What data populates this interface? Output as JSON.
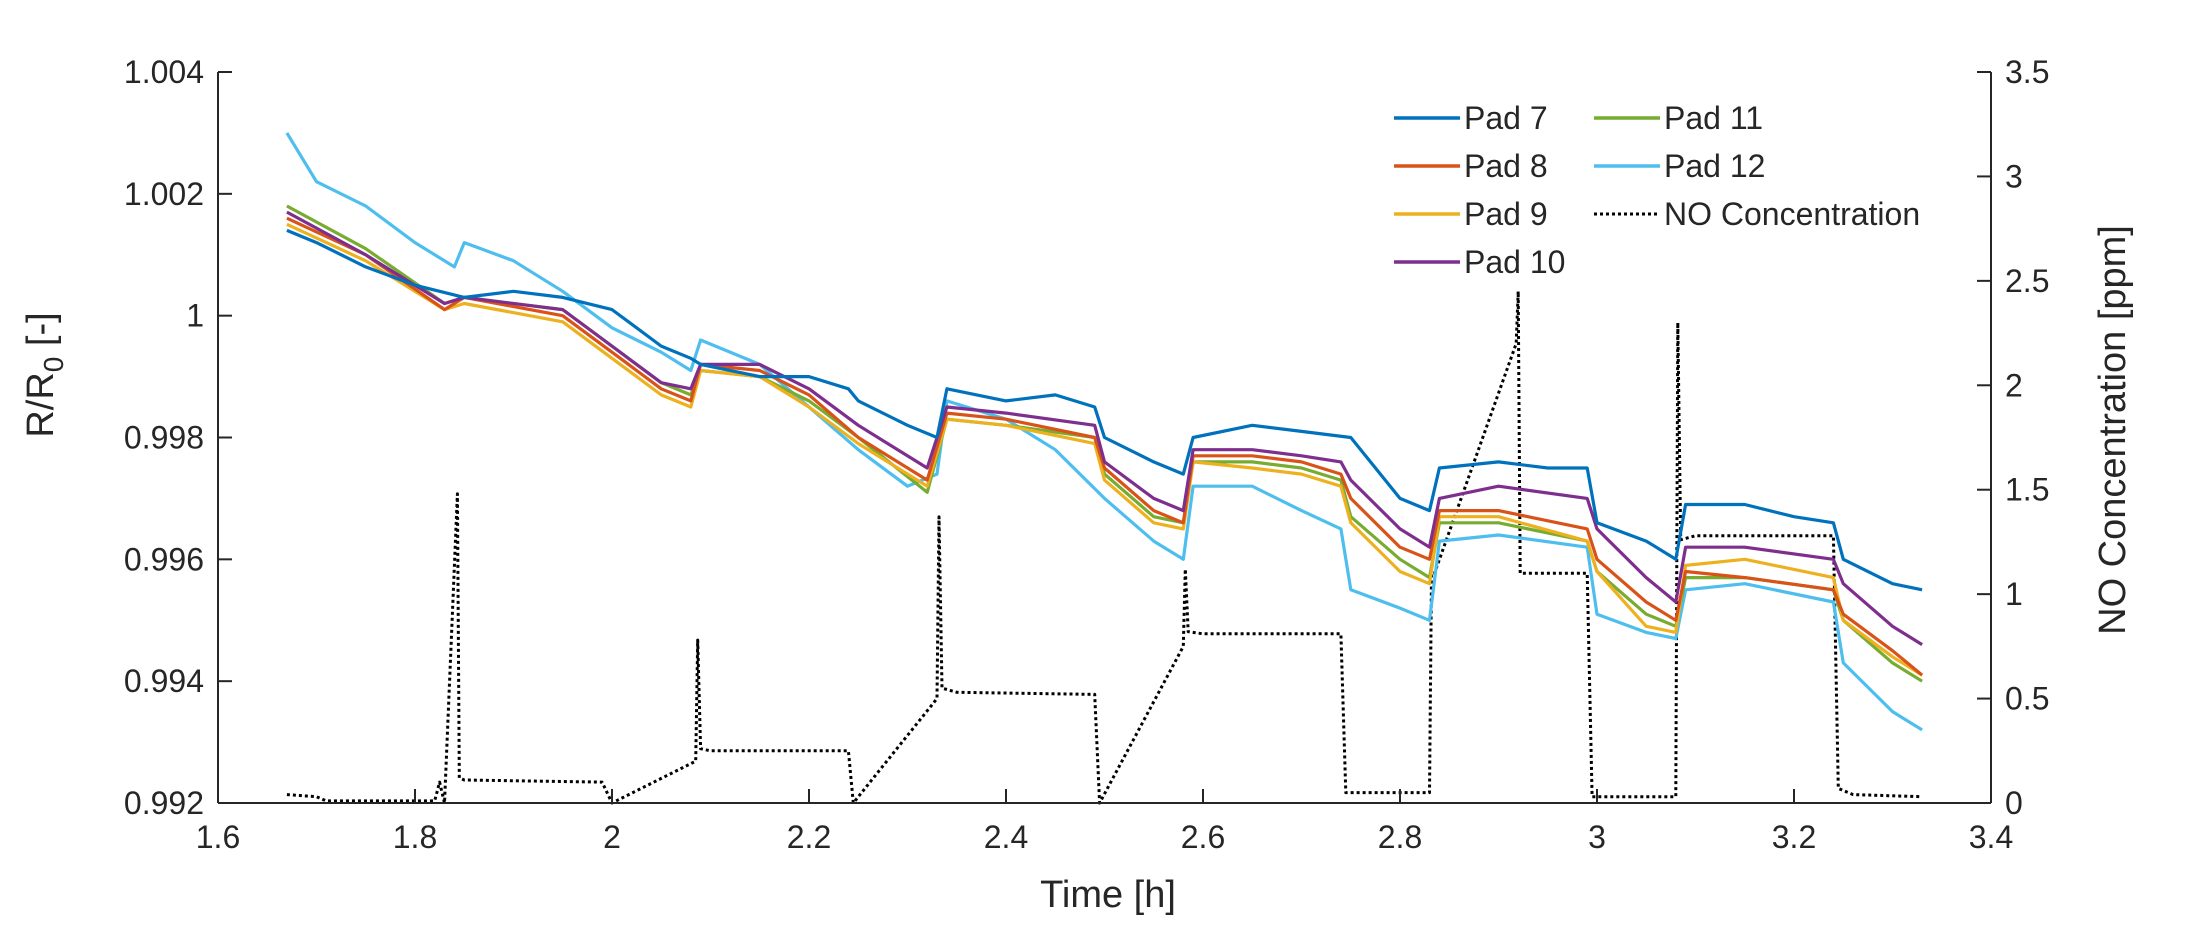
{
  "chart_data": {
    "type": "line",
    "xlabel": "Time [h]",
    "ylabel_left_main": "R/R",
    "ylabel_left_sub": "0",
    "ylabel_left_suffix": " [-]",
    "ylabel_right": "NO Concentration [ppm]",
    "xlim": [
      1.6,
      3.4
    ],
    "ylim_left": [
      0.992,
      1.004
    ],
    "ylim_right": [
      0,
      3.5
    ],
    "x_ticks": [
      "1.6",
      "1.8",
      "2",
      "2.2",
      "2.4",
      "2.6",
      "2.8",
      "3",
      "3.2",
      "3.4"
    ],
    "y_left_ticks": [
      "0.992",
      "0.994",
      "0.996",
      "0.998",
      "1",
      "1.002",
      "1.004"
    ],
    "y_right_ticks": [
      "0",
      "0.5",
      "1",
      "1.5",
      "2",
      "2.5",
      "3",
      "3.5"
    ],
    "grid": false,
    "legend_position": "top-right",
    "colors": {
      "Pad 7": "#0072BD",
      "Pad 8": "#D95319",
      "Pad 9": "#EDB120",
      "Pad 10": "#7E2F8E",
      "Pad 11": "#77AC30",
      "Pad 12": "#4DBEEE",
      "NO Concentration": "#000000"
    },
    "series": [
      {
        "name": "Pad 7",
        "axis": "left",
        "x": [
          1.67,
          1.7,
          1.75,
          1.8,
          1.85,
          1.9,
          1.95,
          2.0,
          2.05,
          2.08,
          2.09,
          2.15,
          2.2,
          2.24,
          2.25,
          2.3,
          2.33,
          2.34,
          2.4,
          2.45,
          2.49,
          2.5,
          2.55,
          2.58,
          2.59,
          2.65,
          2.7,
          2.75,
          2.8,
          2.83,
          2.84,
          2.9,
          2.95,
          2.99,
          3.0,
          3.05,
          3.08,
          3.09,
          3.15,
          3.2,
          3.24,
          3.25,
          3.3,
          3.33
        ],
        "y": [
          1.0014,
          1.0012,
          1.0008,
          1.0005,
          1.0003,
          1.0004,
          1.0003,
          1.0001,
          0.9995,
          0.9993,
          0.9992,
          0.999,
          0.999,
          0.9988,
          0.9986,
          0.9982,
          0.998,
          0.9988,
          0.9986,
          0.9987,
          0.9985,
          0.998,
          0.9976,
          0.9974,
          0.998,
          0.9982,
          0.9981,
          0.998,
          0.997,
          0.9968,
          0.9975,
          0.9976,
          0.9975,
          0.9975,
          0.9966,
          0.9963,
          0.996,
          0.9969,
          0.9969,
          0.9967,
          0.9966,
          0.996,
          0.9956,
          0.9955
        ]
      },
      {
        "name": "Pad 8",
        "axis": "left",
        "x": [
          1.67,
          1.75,
          1.83,
          1.85,
          1.95,
          2.0,
          2.05,
          2.08,
          2.09,
          2.15,
          2.2,
          2.25,
          2.32,
          2.34,
          2.4,
          2.49,
          2.5,
          2.55,
          2.58,
          2.59,
          2.65,
          2.7,
          2.74,
          2.75,
          2.8,
          2.83,
          2.84,
          2.9,
          2.99,
          3.0,
          3.05,
          3.08,
          3.09,
          3.15,
          3.24,
          3.25,
          3.3,
          3.33
        ],
        "y": [
          1.0016,
          1.001,
          1.0001,
          1.0003,
          1.0,
          0.9994,
          0.9988,
          0.9986,
          0.9992,
          0.9991,
          0.9987,
          0.998,
          0.9973,
          0.9984,
          0.9983,
          0.998,
          0.9975,
          0.9968,
          0.9966,
          0.9977,
          0.9977,
          0.9976,
          0.9974,
          0.997,
          0.9962,
          0.996,
          0.9968,
          0.9968,
          0.9965,
          0.996,
          0.9953,
          0.995,
          0.9958,
          0.9957,
          0.9955,
          0.9951,
          0.9945,
          0.9941
        ]
      },
      {
        "name": "Pad 9",
        "axis": "left",
        "x": [
          1.67,
          1.75,
          1.83,
          1.85,
          1.95,
          2.0,
          2.05,
          2.08,
          2.09,
          2.15,
          2.2,
          2.25,
          2.32,
          2.34,
          2.4,
          2.49,
          2.5,
          2.55,
          2.58,
          2.59,
          2.65,
          2.7,
          2.74,
          2.75,
          2.8,
          2.83,
          2.84,
          2.9,
          2.99,
          3.0,
          3.05,
          3.08,
          3.09,
          3.15,
          3.24,
          3.25,
          3.3,
          3.33
        ],
        "y": [
          1.0015,
          1.0009,
          1.0001,
          1.0002,
          0.9999,
          0.9993,
          0.9987,
          0.9985,
          0.9991,
          0.999,
          0.9985,
          0.9979,
          0.9972,
          0.9983,
          0.9982,
          0.9979,
          0.9973,
          0.9966,
          0.9965,
          0.9976,
          0.9975,
          0.9974,
          0.9972,
          0.9966,
          0.9958,
          0.9956,
          0.9967,
          0.9967,
          0.9963,
          0.9958,
          0.9949,
          0.9948,
          0.9959,
          0.996,
          0.9957,
          0.995,
          0.9944,
          0.9941
        ]
      },
      {
        "name": "Pad 10",
        "axis": "left",
        "x": [
          1.67,
          1.75,
          1.83,
          1.85,
          1.95,
          2.0,
          2.05,
          2.08,
          2.09,
          2.15,
          2.2,
          2.25,
          2.32,
          2.34,
          2.4,
          2.49,
          2.5,
          2.55,
          2.58,
          2.59,
          2.65,
          2.7,
          2.74,
          2.75,
          2.8,
          2.83,
          2.84,
          2.9,
          2.99,
          3.0,
          3.05,
          3.08,
          3.09,
          3.15,
          3.24,
          3.25,
          3.3,
          3.33
        ],
        "y": [
          1.0017,
          1.001,
          1.0002,
          1.0003,
          1.0001,
          0.9995,
          0.9989,
          0.9988,
          0.9992,
          0.9992,
          0.9988,
          0.9982,
          0.9975,
          0.9985,
          0.9984,
          0.9982,
          0.9976,
          0.997,
          0.9968,
          0.9978,
          0.9978,
          0.9977,
          0.9976,
          0.9973,
          0.9965,
          0.9962,
          0.997,
          0.9972,
          0.997,
          0.9965,
          0.9957,
          0.9953,
          0.9962,
          0.9962,
          0.996,
          0.9956,
          0.9949,
          0.9946
        ]
      },
      {
        "name": "Pad 11",
        "axis": "left",
        "x": [
          1.67,
          1.75,
          1.83,
          1.85,
          1.95,
          2.0,
          2.05,
          2.08,
          2.09,
          2.15,
          2.2,
          2.25,
          2.32,
          2.34,
          2.4,
          2.49,
          2.5,
          2.55,
          2.58,
          2.59,
          2.65,
          2.7,
          2.74,
          2.75,
          2.8,
          2.83,
          2.84,
          2.9,
          2.99,
          3.0,
          3.05,
          3.08,
          3.09,
          3.15,
          3.24,
          3.25,
          3.3,
          3.33
        ],
        "y": [
          1.0018,
          1.0011,
          1.0002,
          1.0003,
          1.0001,
          0.9995,
          0.9989,
          0.9987,
          0.9991,
          0.999,
          0.9986,
          0.998,
          0.9971,
          0.9983,
          0.9982,
          0.998,
          0.9974,
          0.9967,
          0.9966,
          0.9976,
          0.9976,
          0.9975,
          0.9973,
          0.9967,
          0.996,
          0.9957,
          0.9966,
          0.9966,
          0.9963,
          0.9958,
          0.9951,
          0.9949,
          0.9957,
          0.9957,
          0.9955,
          0.995,
          0.9943,
          0.994
        ]
      },
      {
        "name": "Pad 12",
        "axis": "left",
        "x": [
          1.67,
          1.7,
          1.75,
          1.8,
          1.84,
          1.85,
          1.9,
          1.95,
          2.0,
          2.05,
          2.08,
          2.09,
          2.15,
          2.2,
          2.25,
          2.3,
          2.33,
          2.34,
          2.4,
          2.45,
          2.5,
          2.55,
          2.58,
          2.59,
          2.65,
          2.7,
          2.74,
          2.75,
          2.8,
          2.83,
          2.84,
          2.9,
          2.99,
          3.0,
          3.05,
          3.08,
          3.09,
          3.15,
          3.24,
          3.25,
          3.3,
          3.33
        ],
        "y": [
          1.003,
          1.0022,
          1.0018,
          1.0012,
          1.0008,
          1.0012,
          1.0009,
          1.0004,
          0.9998,
          0.9994,
          0.9991,
          0.9996,
          0.9992,
          0.9985,
          0.9978,
          0.9972,
          0.9974,
          0.9986,
          0.9983,
          0.9978,
          0.997,
          0.9963,
          0.996,
          0.9972,
          0.9972,
          0.9968,
          0.9965,
          0.9955,
          0.9952,
          0.995,
          0.9963,
          0.9964,
          0.9962,
          0.9951,
          0.9948,
          0.9947,
          0.9955,
          0.9956,
          0.9953,
          0.9943,
          0.9935,
          0.9932
        ]
      },
      {
        "name": "NO Concentration",
        "axis": "right",
        "x": [
          1.67,
          1.7,
          1.71,
          1.82,
          1.825,
          1.83,
          1.843,
          1.845,
          1.85,
          1.99,
          2.0,
          2.085,
          2.087,
          2.09,
          2.1,
          2.24,
          2.245,
          2.33,
          2.332,
          2.335,
          2.35,
          2.49,
          2.495,
          2.58,
          2.582,
          2.585,
          2.6,
          2.74,
          2.745,
          2.83,
          2.832,
          2.835,
          2.918,
          2.92,
          2.922,
          2.925,
          2.99,
          2.995,
          3.08,
          3.082,
          3.085,
          3.1,
          3.24,
          3.245,
          3.26,
          3.33
        ],
        "y": [
          0.04,
          0.03,
          0.01,
          0.01,
          0.1,
          0.0,
          1.48,
          0.12,
          0.11,
          0.1,
          0.0,
          0.2,
          0.78,
          0.26,
          0.25,
          0.25,
          0.0,
          0.5,
          1.37,
          0.55,
          0.53,
          0.52,
          0.0,
          0.75,
          1.12,
          0.82,
          0.81,
          0.81,
          0.05,
          0.05,
          1.1,
          1.1,
          2.2,
          2.45,
          1.1,
          1.1,
          1.1,
          0.03,
          0.03,
          2.3,
          1.26,
          1.28,
          1.28,
          0.07,
          0.04,
          0.03
        ]
      }
    ]
  }
}
